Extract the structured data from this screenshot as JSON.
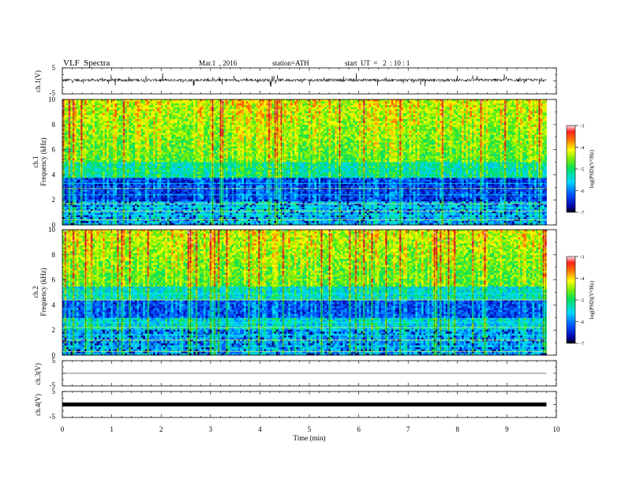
{
  "header": {
    "title": "VLF  Spectra",
    "date": "Mar.1  , 2016",
    "station": "station=ATH",
    "start": "start  UT  =   2  : 10 : 1"
  },
  "chart_data": [
    {
      "type": "line",
      "name": "ch1-waveform",
      "ylabel": "ch.1(V)",
      "ylim": [
        -5,
        5
      ],
      "yticks": [
        "5",
        "-5"
      ],
      "xlim": [
        0,
        10
      ]
    },
    {
      "type": "heatmap",
      "name": "ch1-spectrogram",
      "ylabel_channel": "ch.1",
      "ylabel": "Frequency  (kHz)",
      "ylim": [
        0,
        10
      ],
      "yticks": [
        "0",
        "2",
        "4",
        "6",
        "8",
        "10"
      ],
      "xlim": [
        0,
        10
      ],
      "data_end_min": 9.8,
      "colorbar": {
        "label": "log(PSD)(V²/Hz)",
        "range": [
          -7,
          -3
        ],
        "ticks": [
          "-3",
          "-4",
          "-5",
          "-6",
          "-7"
        ]
      }
    },
    {
      "type": "heatmap",
      "name": "ch2-spectrogram",
      "ylabel_channel": "ch.2",
      "ylabel": "Frequency  (kHz)",
      "ylim": [
        0,
        10
      ],
      "yticks": [
        "0",
        "2",
        "4",
        "6",
        "8",
        "10"
      ],
      "xlim": [
        0,
        10
      ],
      "data_end_min": 9.8,
      "colorbar": {
        "label": "log(PSD)(V²/Hz)",
        "range": [
          -7,
          -3
        ],
        "ticks": [
          "-3",
          "-4",
          "-5",
          "-6",
          "-7"
        ]
      }
    },
    {
      "type": "line",
      "name": "ch3-waveform",
      "ylabel": "ch.3(V)",
      "ylim": [
        -5,
        5
      ],
      "yticks": [
        "5",
        "-5"
      ],
      "xlim": [
        0,
        10
      ],
      "level": 0
    },
    {
      "type": "line",
      "name": "ch4-waveform",
      "ylabel": "ch.4(V)",
      "ylim": [
        -5,
        5
      ],
      "yticks": [
        "5",
        "-5"
      ],
      "xlim": [
        0,
        10
      ],
      "level": 0,
      "xlabel": "Time  (min)",
      "xticks": [
        "0",
        "1",
        "2",
        "3",
        "4",
        "5",
        "6",
        "7",
        "8",
        "9",
        "10"
      ]
    }
  ]
}
